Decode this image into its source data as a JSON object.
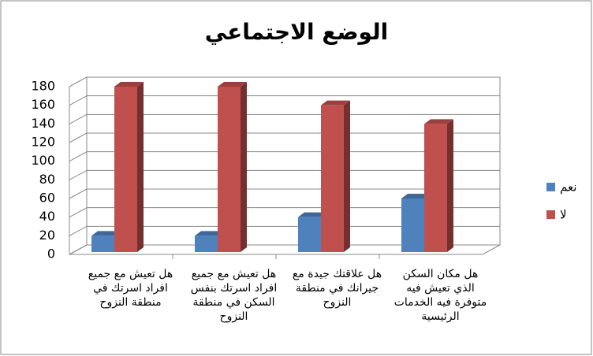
{
  "chart_data": {
    "type": "bar",
    "title": "الوضع الاجتماعي",
    "categories": [
      "هل تعيش مع جميع افراد اسرتك في منطقة النزوح",
      "هل تعيش مع جميع افراد اسرتك بنفس السكن في منطقة النزوح",
      "هل علاقتك جيدة مع جيرانك في منطقة النزوح",
      "هل مكان السكن الذي تعيش فيه متوفرة فيه الخدمات الرئيسية"
    ],
    "series": [
      {
        "name": "نعم",
        "color": "#4f81bd",
        "values": [
          20,
          20,
          40,
          60
        ]
      },
      {
        "name": "لا",
        "color": "#c0504d",
        "values": [
          180,
          180,
          160,
          140
        ]
      }
    ],
    "ylim": [
      0,
      180
    ],
    "yticks": [
      0,
      20,
      40,
      60,
      80,
      100,
      120,
      140,
      160,
      180
    ],
    "grid": true,
    "legend": "right"
  }
}
